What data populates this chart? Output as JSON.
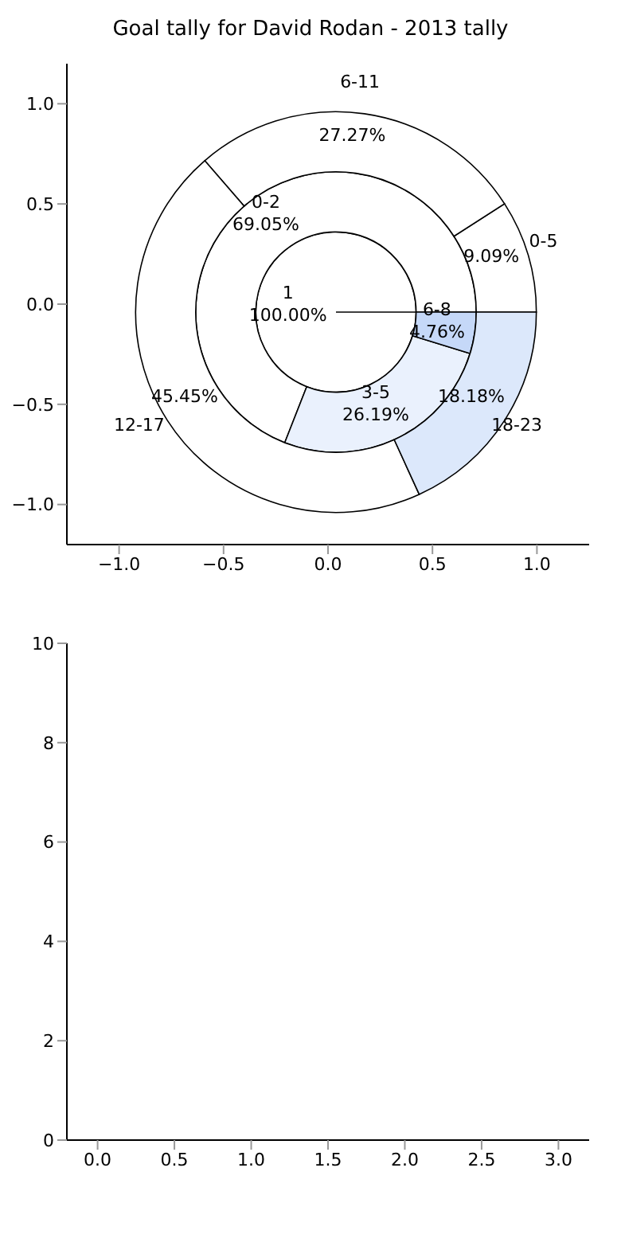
{
  "chart_data": [
    {
      "type": "scatter",
      "title": "Goal tally for David Rodan - 2013 tally",
      "xlim": [
        -1.25,
        1.25
      ],
      "ylim": [
        -1.2,
        1.2
      ],
      "grid": false,
      "xticks": [
        {
          "value": -1.0,
          "label": "−1.0"
        },
        {
          "value": -0.5,
          "label": "−0.5"
        },
        {
          "value": 0.0,
          "label": "0.0"
        },
        {
          "value": 0.5,
          "label": "0.5"
        },
        {
          "value": 1.0,
          "label": "1.0"
        }
      ],
      "yticks": [
        {
          "value": -1.0,
          "label": "−1.0"
        },
        {
          "value": -0.5,
          "label": "−0.5"
        },
        {
          "value": 0.0,
          "label": "0.0"
        },
        {
          "value": 0.5,
          "label": "0.5"
        },
        {
          "value": 1.0,
          "label": "1.0"
        }
      ]
    },
    {
      "type": "pie",
      "categories": [
        "1"
      ],
      "values": [
        100
      ],
      "value_labels": [
        "100.00%"
      ],
      "colors": [
        "#ffffff"
      ]
    },
    {
      "type": "donut",
      "categories": [
        "0-2",
        "3-5",
        "6-8"
      ],
      "values": [
        69.05,
        26.19,
        4.76
      ],
      "value_labels": [
        "69.05%",
        "26.19%",
        "4.76%"
      ],
      "colors": [
        "#ffffff",
        "#eaf1fd",
        "#c5d8f8"
      ]
    },
    {
      "type": "donut",
      "categories": [
        "0-5",
        "6-11",
        "12-17",
        "18-23"
      ],
      "values": [
        9.09,
        27.27,
        45.45,
        18.18
      ],
      "value_labels": [
        "9.09%",
        "27.27%",
        "45.45%",
        "18.18%"
      ],
      "colors": [
        "#ffffff",
        "#ffffff",
        "#ffffff",
        "#dce8fb"
      ]
    },
    {
      "type": "scatter",
      "xlim": [
        -0.2,
        3.2
      ],
      "ylim": [
        0,
        10
      ],
      "grid": false,
      "xticks": [
        {
          "value": 0,
          "label": "0.0"
        },
        {
          "value": 0.5,
          "label": "0.5"
        },
        {
          "value": 1,
          "label": "1.0"
        },
        {
          "value": 1.5,
          "label": "1.5"
        },
        {
          "value": 2,
          "label": "2.0"
        },
        {
          "value": 2.5,
          "label": "2.5"
        },
        {
          "value": 3,
          "label": "3.0"
        }
      ],
      "yticks": [
        0,
        2,
        4,
        6,
        8,
        10
      ]
    }
  ]
}
